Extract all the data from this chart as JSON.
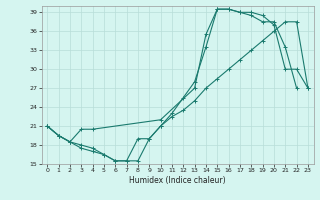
{
  "xlabel": "Humidex (Indice chaleur)",
  "bg_color": "#d5f5f0",
  "grid_color": "#b8ddd8",
  "line_color": "#1a7a6e",
  "xlim": [
    -0.5,
    23.5
  ],
  "ylim": [
    15,
    40
  ],
  "yticks": [
    15,
    18,
    21,
    24,
    27,
    30,
    33,
    36,
    39
  ],
  "xticks": [
    0,
    1,
    2,
    3,
    4,
    5,
    6,
    7,
    8,
    9,
    10,
    11,
    12,
    13,
    14,
    15,
    16,
    17,
    18,
    19,
    20,
    21,
    22,
    23
  ],
  "line1_x": [
    0,
    1,
    2,
    3,
    4,
    5,
    6,
    7,
    8,
    9,
    10,
    11,
    12,
    13,
    14,
    15,
    16,
    17,
    18,
    19,
    20,
    21,
    22,
    23
  ],
  "line1_y": [
    21,
    19.5,
    18.5,
    18.0,
    17.5,
    16.5,
    15.5,
    15.5,
    15.5,
    19.0,
    21.0,
    22.5,
    23.5,
    25.0,
    27.0,
    28.5,
    30.0,
    31.5,
    33.0,
    34.5,
    36.0,
    37.5,
    37.5,
    27.0
  ],
  "line2_x": [
    0,
    1,
    2,
    3,
    4,
    5,
    6,
    7,
    8,
    9,
    10,
    11,
    12,
    13,
    14,
    15,
    16,
    17,
    18,
    19,
    20,
    21,
    22,
    23
  ],
  "line2_y": [
    21,
    19.5,
    18.5,
    17.5,
    17.0,
    16.5,
    15.5,
    15.5,
    19.0,
    19.0,
    21.0,
    23.0,
    25.5,
    28.0,
    33.5,
    39.5,
    39.5,
    39.0,
    39.0,
    38.5,
    37.0,
    30.0,
    30.0,
    27.0
  ],
  "line3_x": [
    0,
    1,
    2,
    3,
    4,
    10,
    13,
    14,
    15,
    16,
    17,
    18,
    19,
    20,
    21,
    22
  ],
  "line3_y": [
    21,
    19.5,
    18.5,
    20.5,
    20.5,
    22.0,
    27.0,
    35.5,
    39.5,
    39.5,
    39.0,
    38.5,
    37.5,
    37.5,
    33.5,
    27.0
  ]
}
